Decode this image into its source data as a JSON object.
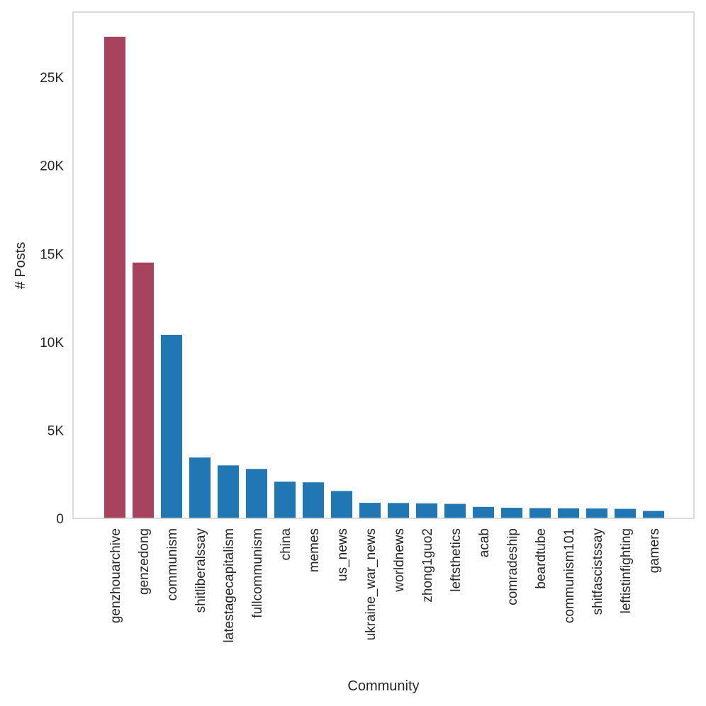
{
  "chart_data": {
    "type": "bar",
    "title": "",
    "xlabel": "Community",
    "ylabel": "# Posts",
    "ylim": [
      0,
      28700
    ],
    "grid": false,
    "yticks": [
      {
        "value": 0,
        "label": "0"
      },
      {
        "value": 5000,
        "label": "5K"
      },
      {
        "value": 10000,
        "label": "10K"
      },
      {
        "value": 15000,
        "label": "15K"
      },
      {
        "value": 20000,
        "label": "20K"
      },
      {
        "value": 25000,
        "label": "25K"
      }
    ],
    "categories": [
      "genzhouarchive",
      "genzedong",
      "communism",
      "shitliberalssay",
      "latestagecapitalism",
      "fullcommunism",
      "china",
      "memes",
      "us_news",
      "ukraine_war_news",
      "worldnews",
      "zhong1guo2",
      "leftsthetics",
      "acab",
      "comradeship",
      "beardtube",
      "communism101",
      "shitfascistssay",
      "leftistinfighting",
      "gamers"
    ],
    "values": [
      27300,
      14500,
      10400,
      3450,
      3000,
      2800,
      2080,
      2040,
      1550,
      880,
      870,
      850,
      820,
      650,
      600,
      580,
      570,
      560,
      540,
      420
    ],
    "highlight": [
      true,
      true,
      false,
      false,
      false,
      false,
      false,
      false,
      false,
      false,
      false,
      false,
      false,
      false,
      false,
      false,
      false,
      false,
      false,
      false
    ],
    "colors": {
      "highlight": "#a8435f",
      "default": "#2077b4",
      "frame": "#d0d0d0"
    }
  }
}
